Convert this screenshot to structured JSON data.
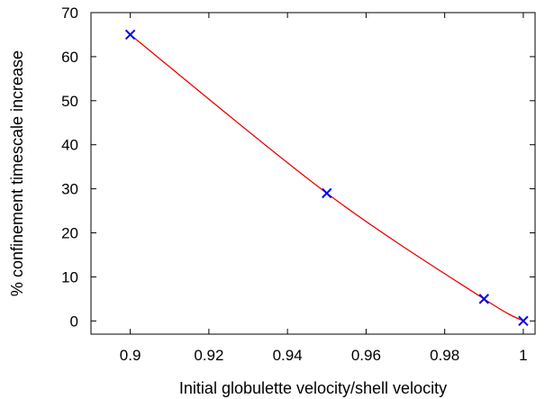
{
  "chart_data": {
    "type": "line",
    "title": "",
    "xlabel": "Initial globulette velocity/shell velocity",
    "ylabel": "% confinement timescale increase",
    "xlim": [
      0.89,
      1.003
    ],
    "ylim": [
      -3,
      70
    ],
    "xticks": [
      {
        "value": 0.9,
        "label": "0.9"
      },
      {
        "value": 0.92,
        "label": "0.92"
      },
      {
        "value": 0.94,
        "label": "0.94"
      },
      {
        "value": 0.96,
        "label": "0.96"
      },
      {
        "value": 0.98,
        "label": "0.98"
      },
      {
        "value": 1.0,
        "label": "1"
      }
    ],
    "yticks": [
      {
        "value": 0,
        "label": "0"
      },
      {
        "value": 10,
        "label": "10"
      },
      {
        "value": 20,
        "label": "20"
      },
      {
        "value": 30,
        "label": "30"
      },
      {
        "value": 40,
        "label": "40"
      },
      {
        "value": 50,
        "label": "50"
      },
      {
        "value": 60,
        "label": "60"
      },
      {
        "value": 70,
        "label": "70"
      }
    ],
    "grid": false,
    "legend": "none",
    "series": [
      {
        "marker": "x",
        "marker_color": "#0000ee",
        "line_color": "#ee0000",
        "x": [
          0.9,
          0.95,
          0.99,
          1.0
        ],
        "y": [
          65,
          29,
          5,
          0
        ]
      }
    ]
  }
}
